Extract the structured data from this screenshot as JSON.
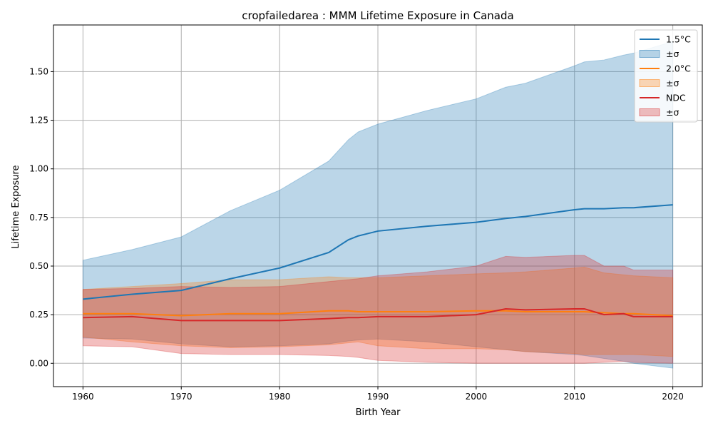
{
  "chart_data": {
    "type": "line",
    "title": "cropfailedarea : MMM Lifetime Exposure in Canada",
    "xlabel": "Birth Year",
    "ylabel": "Lifetime Exposure",
    "xlim": [
      1957,
      2023
    ],
    "ylim": [
      -0.12,
      1.74
    ],
    "xticks": [
      1960,
      1970,
      1980,
      1990,
      2000,
      2010,
      2020
    ],
    "xtick_labels": [
      "1960",
      "1970",
      "1980",
      "1990",
      "2000",
      "2010",
      "2020"
    ],
    "yticks": [
      0.0,
      0.25,
      0.5,
      0.75,
      1.0,
      1.25,
      1.5
    ],
    "ytick_labels": [
      "0.00",
      "0.25",
      "0.50",
      "0.75",
      "1.00",
      "1.25",
      "1.50"
    ],
    "grid": true,
    "legend_position": "top-right",
    "legend": [
      {
        "kind": "line",
        "label": "1.5°C",
        "series": 0
      },
      {
        "kind": "band",
        "label": "±σ",
        "series": 0
      },
      {
        "kind": "line",
        "label": "2.0°C",
        "series": 1
      },
      {
        "kind": "band",
        "label": "±σ",
        "series": 1
      },
      {
        "kind": "line",
        "label": "NDC",
        "series": 2
      },
      {
        "kind": "band",
        "label": "±σ",
        "series": 2
      }
    ],
    "x": [
      1960,
      1965,
      1970,
      1975,
      1980,
      1985,
      1987,
      1988,
      1990,
      1995,
      2000,
      2003,
      2005,
      2010,
      2011,
      2013,
      2015,
      2016,
      2020
    ],
    "series": [
      {
        "name": "1.5°C",
        "color": "#1f77b4",
        "band_color": "#1f77b4",
        "band_opacity": 0.3,
        "values": [
          0.33,
          0.355,
          0.375,
          0.435,
          0.49,
          0.57,
          0.635,
          0.655,
          0.68,
          0.705,
          0.725,
          0.745,
          0.755,
          0.79,
          0.795,
          0.795,
          0.8,
          0.8,
          0.815
        ],
        "upper": [
          0.53,
          0.585,
          0.65,
          0.785,
          0.89,
          1.04,
          1.15,
          1.19,
          1.23,
          1.3,
          1.36,
          1.42,
          1.44,
          1.53,
          1.55,
          1.56,
          1.585,
          1.595,
          1.655
        ],
        "lower": [
          0.13,
          0.125,
          0.1,
          0.085,
          0.09,
          0.1,
          0.115,
          0.12,
          0.125,
          0.11,
          0.085,
          0.07,
          0.06,
          0.045,
          0.04,
          0.025,
          0.01,
          0.0,
          -0.025
        ]
      },
      {
        "name": "2.0°C",
        "color": "#ff7f0e",
        "band_color": "#ff7f0e",
        "band_opacity": 0.3,
        "values": [
          0.255,
          0.255,
          0.245,
          0.255,
          0.255,
          0.27,
          0.27,
          0.265,
          0.265,
          0.265,
          0.27,
          0.27,
          0.265,
          0.265,
          0.265,
          0.26,
          0.255,
          0.255,
          0.245
        ],
        "upper": [
          0.38,
          0.395,
          0.41,
          0.43,
          0.43,
          0.445,
          0.44,
          0.44,
          0.44,
          0.45,
          0.46,
          0.465,
          0.47,
          0.49,
          0.495,
          0.465,
          0.455,
          0.45,
          0.44
        ],
        "lower": [
          0.135,
          0.11,
          0.09,
          0.08,
          0.085,
          0.095,
          0.105,
          0.11,
          0.09,
          0.075,
          0.075,
          0.07,
          0.06,
          0.05,
          0.045,
          0.045,
          0.045,
          0.045,
          0.035
        ]
      },
      {
        "name": "NDC",
        "color": "#d62728",
        "band_color": "#d62728",
        "band_opacity": 0.3,
        "values": [
          0.235,
          0.24,
          0.22,
          0.22,
          0.22,
          0.23,
          0.235,
          0.235,
          0.24,
          0.24,
          0.25,
          0.28,
          0.275,
          0.28,
          0.28,
          0.25,
          0.255,
          0.24,
          0.24
        ],
        "upper": [
          0.38,
          0.385,
          0.395,
          0.39,
          0.395,
          0.42,
          0.43,
          0.435,
          0.45,
          0.47,
          0.5,
          0.55,
          0.545,
          0.555,
          0.555,
          0.5,
          0.5,
          0.48,
          0.48
        ],
        "lower": [
          0.09,
          0.085,
          0.05,
          0.045,
          0.045,
          0.04,
          0.035,
          0.03,
          0.015,
          0.005,
          0.0,
          0.0,
          0.0,
          0.0,
          0.0,
          0.005,
          0.01,
          0.005,
          0.0
        ]
      }
    ]
  }
}
